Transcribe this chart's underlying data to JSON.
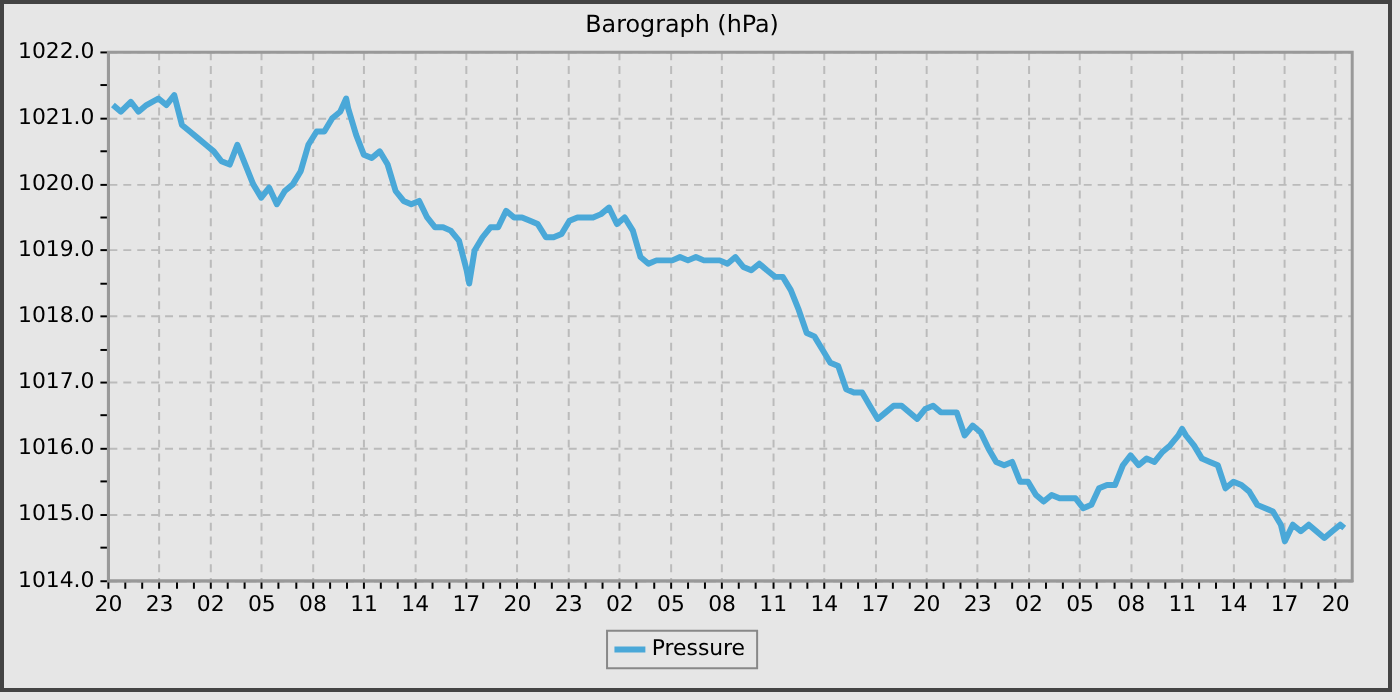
{
  "chart_data": {
    "type": "line",
    "title": "Barograph (hPa)",
    "grid": true,
    "legend": "bottom",
    "marker": "none",
    "line_style": "solid",
    "xlim": [
      "--01-01T20:00",
      "--01-04T20:58"
    ],
    "ylim": [
      1014,
      1022
    ],
    "xticks": [
      {
        "value": "--01-01T20:00",
        "label": "20"
      },
      {
        "value": "--01-01T21:00",
        "label": null
      },
      {
        "value": "--01-01T22:00",
        "label": null
      },
      {
        "value": "--01-01T23:00",
        "label": "23"
      },
      {
        "value": "--01-02T00:00",
        "label": null
      },
      {
        "value": "--01-02T01:00",
        "label": null
      },
      {
        "value": "--01-02T02:00",
        "label": "02"
      },
      {
        "value": "--01-02T03:00",
        "label": null
      },
      {
        "value": "--01-02T04:00",
        "label": null
      },
      {
        "value": "--01-02T05:00",
        "label": "05"
      },
      {
        "value": "--01-02T06:00",
        "label": null
      },
      {
        "value": "--01-02T07:00",
        "label": null
      },
      {
        "value": "--01-02T08:00",
        "label": "08"
      },
      {
        "value": "--01-02T09:00",
        "label": null
      },
      {
        "value": "--01-02T10:00",
        "label": null
      },
      {
        "value": "--01-02T11:00",
        "label": "11"
      },
      {
        "value": "--01-02T12:00",
        "label": null
      },
      {
        "value": "--01-02T13:00",
        "label": null
      },
      {
        "value": "--01-02T14:00",
        "label": "14"
      },
      {
        "value": "--01-02T15:00",
        "label": null
      },
      {
        "value": "--01-02T16:00",
        "label": null
      },
      {
        "value": "--01-02T17:00",
        "label": "17"
      },
      {
        "value": "--01-02T18:00",
        "label": null
      },
      {
        "value": "--01-02T19:00",
        "label": null
      },
      {
        "value": "--01-02T20:00",
        "label": "20"
      },
      {
        "value": "--01-02T21:00",
        "label": null
      },
      {
        "value": "--01-02T22:00",
        "label": null
      },
      {
        "value": "--01-02T23:00",
        "label": "23"
      },
      {
        "value": "--01-03T00:00",
        "label": null
      },
      {
        "value": "--01-03T01:00",
        "label": null
      },
      {
        "value": "--01-03T02:00",
        "label": "02"
      },
      {
        "value": "--01-03T03:00",
        "label": null
      },
      {
        "value": "--01-03T04:00",
        "label": null
      },
      {
        "value": "--01-03T05:00",
        "label": "05"
      },
      {
        "value": "--01-03T06:00",
        "label": null
      },
      {
        "value": "--01-03T07:00",
        "label": null
      },
      {
        "value": "--01-03T08:00",
        "label": "08"
      },
      {
        "value": "--01-03T09:00",
        "label": null
      },
      {
        "value": "--01-03T10:00",
        "label": null
      },
      {
        "value": "--01-03T11:00",
        "label": "11"
      },
      {
        "value": "--01-03T12:00",
        "label": null
      },
      {
        "value": "--01-03T13:00",
        "label": null
      },
      {
        "value": "--01-03T14:00",
        "label": "14"
      },
      {
        "value": "--01-03T15:00",
        "label": null
      },
      {
        "value": "--01-03T16:00",
        "label": null
      },
      {
        "value": "--01-03T17:00",
        "label": "17"
      },
      {
        "value": "--01-03T18:00",
        "label": null
      },
      {
        "value": "--01-03T19:00",
        "label": null
      },
      {
        "value": "--01-03T20:00",
        "label": "20"
      },
      {
        "value": "--01-03T21:00",
        "label": null
      },
      {
        "value": "--01-03T22:00",
        "label": null
      },
      {
        "value": "--01-03T23:00",
        "label": "23"
      },
      {
        "value": "--01-04T00:00",
        "label": null
      },
      {
        "value": "--01-04T01:00",
        "label": null
      },
      {
        "value": "--01-04T02:00",
        "label": "02"
      },
      {
        "value": "--01-04T03:00",
        "label": null
      },
      {
        "value": "--01-04T04:00",
        "label": null
      },
      {
        "value": "--01-04T05:00",
        "label": "05"
      },
      {
        "value": "--01-04T06:00",
        "label": null
      },
      {
        "value": "--01-04T07:00",
        "label": null
      },
      {
        "value": "--01-04T08:00",
        "label": "08"
      },
      {
        "value": "--01-04T09:00",
        "label": null
      },
      {
        "value": "--01-04T10:00",
        "label": null
      },
      {
        "value": "--01-04T11:00",
        "label": "11"
      },
      {
        "value": "--01-04T12:00",
        "label": null
      },
      {
        "value": "--01-04T13:00",
        "label": null
      },
      {
        "value": "--01-04T14:00",
        "label": "14"
      },
      {
        "value": "--01-04T15:00",
        "label": null
      },
      {
        "value": "--01-04T16:00",
        "label": null
      },
      {
        "value": "--01-04T17:00",
        "label": "17"
      },
      {
        "value": "--01-04T18:00",
        "label": null
      },
      {
        "value": "--01-04T19:00",
        "label": null
      },
      {
        "value": "--01-04T20:00",
        "label": "20"
      }
    ],
    "yticks": [
      {
        "value": 1014,
        "label": "1014.0"
      },
      {
        "value": 1014.5,
        "label": null
      },
      {
        "value": 1015,
        "label": "1015.0"
      },
      {
        "value": 1015.5,
        "label": null
      },
      {
        "value": 1016,
        "label": "1016.0"
      },
      {
        "value": 1016.5,
        "label": null
      },
      {
        "value": 1017,
        "label": "1017.0"
      },
      {
        "value": 1017.5,
        "label": null
      },
      {
        "value": 1018,
        "label": "1018.0"
      },
      {
        "value": 1018.5,
        "label": null
      },
      {
        "value": 1019,
        "label": "1019.0"
      },
      {
        "value": 1019.5,
        "label": null
      },
      {
        "value": 1020,
        "label": "1020.0"
      },
      {
        "value": 1020.5,
        "label": null
      },
      {
        "value": 1021,
        "label": "1021.0"
      },
      {
        "value": 1021.5,
        "label": null
      },
      {
        "value": 1022,
        "label": "1022.0"
      }
    ],
    "series": [
      {
        "name": "Pressure",
        "color": "#4aa8d8",
        "x": [
          "--01-01T20:16",
          "--01-01T20:44",
          "--01-01T21:19",
          "--01-01T21:46",
          "--01-01T22:14",
          "--01-01T22:56",
          "--01-01T23:24",
          "--01-01T23:52",
          "--01-02T00:19",
          "--01-02T00:47",
          "--01-02T01:15",
          "--01-02T01:43",
          "--01-02T02:11",
          "--01-02T02:38",
          "--01-02T03:07",
          "--01-02T03:34",
          "--01-02T04:02",
          "--01-02T04:30",
          "--01-02T04:58",
          "--01-02T05:26",
          "--01-02T05:53",
          "--01-02T06:21",
          "--01-02T06:49",
          "--01-02T07:17",
          "--01-02T07:44",
          "--01-02T08:13",
          "--01-02T08:40",
          "--01-02T09:08",
          "--01-02T09:36",
          "--01-02T09:57",
          "--01-02T10:04",
          "--01-02T10:32",
          "--01-02T10:59",
          "--01-02T11:27",
          "--01-02T11:55",
          "--01-02T12:23",
          "--01-02T12:51",
          "--01-02T13:19",
          "--01-02T13:46",
          "--01-02T14:14",
          "--01-02T14:42",
          "--01-02T15:10",
          "--01-02T15:38",
          "--01-02T16:05",
          "--01-02T16:34",
          "--01-02T17:01",
          "--01-02T17:10",
          "--01-02T17:29",
          "--01-02T17:57",
          "--01-02T18:25",
          "--01-02T18:52",
          "--01-02T19:20",
          "--01-02T19:48",
          "--01-02T20:16",
          "--01-02T20:44",
          "--01-02T21:11",
          "--01-02T21:40",
          "--01-02T22:07",
          "--01-02T22:35",
          "--01-02T23:03",
          "--01-02T23:31",
          "--01-02T23:59",
          "--01-03T00:26",
          "--01-03T00:54",
          "--01-03T01:22",
          "--01-03T01:50",
          "--01-03T02:17",
          "--01-03T02:46",
          "--01-03T03:13",
          "--01-03T03:41",
          "--01-03T04:09",
          "--01-03T04:37",
          "--01-03T05:05",
          "--01-03T05:32",
          "--01-03T06:00",
          "--01-03T06:28",
          "--01-03T06:56",
          "--01-03T07:24",
          "--01-03T07:52",
          "--01-03T08:19",
          "--01-03T08:47",
          "--01-03T09:15",
          "--01-03T09:43",
          "--01-03T10:11",
          "--01-03T10:38",
          "--01-03T11:07",
          "--01-03T11:34",
          "--01-03T12:02",
          "--01-03T12:30",
          "--01-03T12:58",
          "--01-03T13:25",
          "--01-03T13:53",
          "--01-03T14:21",
          "--01-03T14:49",
          "--01-03T15:17",
          "--01-03T15:44",
          "--01-03T16:13",
          "--01-03T16:40",
          "--01-03T17:08",
          "--01-03T17:36",
          "--01-03T18:04",
          "--01-03T18:32",
          "--01-03T18:59",
          "--01-03T19:27",
          "--01-03T19:55",
          "--01-03T20:23",
          "--01-03T20:50",
          "--01-03T21:19",
          "--01-03T21:46",
          "--01-03T22:14",
          "--01-03T22:42",
          "--01-03T23:10",
          "--01-03T23:38",
          "--01-04T00:05",
          "--01-04T00:33",
          "--01-04T01:01",
          "--01-04T01:29",
          "--01-04T01:57",
          "--01-04T02:25",
          "--01-04T02:52",
          "--01-04T03:20",
          "--01-04T03:48",
          "--01-04T04:16",
          "--01-04T04:44",
          "--01-04T05:11",
          "--01-04T05:40",
          "--01-04T06:07",
          "--01-04T06:35",
          "--01-04T07:03",
          "--01-04T07:31",
          "--01-04T07:58",
          "--01-04T08:26",
          "--01-04T08:54",
          "--01-04T09:22",
          "--01-04T09:50",
          "--01-04T10:17",
          "--01-04T10:46",
          "--01-04T10:59",
          "--01-04T11:13",
          "--01-04T11:41",
          "--01-04T12:09",
          "--01-04T12:37",
          "--01-04T13:05",
          "--01-04T13:32",
          "--01-04T14:00",
          "--01-04T14:28",
          "--01-04T14:56",
          "--01-04T15:24",
          "--01-04T15:52",
          "--01-04T16:19",
          "--01-04T16:47",
          "--01-04T17:01",
          "--01-04T17:29",
          "--01-04T17:57",
          "--01-04T18:25",
          "--01-04T18:52",
          "--01-04T19:20",
          "--01-04T19:48",
          "--01-04T20:16",
          "--01-04T20:30"
        ],
        "values": [
          1021.2,
          1021.1,
          1021.25,
          1021.1,
          1021.2,
          1021.3,
          1021.2,
          1021.35,
          1020.9,
          1020.8,
          1020.7,
          1020.6,
          1020.5,
          1020.35,
          1020.3,
          1020.6,
          1020.3,
          1020.0,
          1019.8,
          1019.95,
          1019.7,
          1019.9,
          1020.0,
          1020.2,
          1020.6,
          1020.8,
          1020.8,
          1021.0,
          1021.1,
          1021.3,
          1021.15,
          1020.75,
          1020.45,
          1020.4,
          1020.5,
          1020.3,
          1019.9,
          1019.75,
          1019.7,
          1019.75,
          1019.5,
          1019.35,
          1019.35,
          1019.3,
          1019.15,
          1018.7,
          1018.5,
          1019.0,
          1019.2,
          1019.35,
          1019.35,
          1019.6,
          1019.5,
          1019.5,
          1019.45,
          1019.4,
          1019.2,
          1019.2,
          1019.25,
          1019.45,
          1019.5,
          1019.5,
          1019.5,
          1019.55,
          1019.65,
          1019.4,
          1019.5,
          1019.3,
          1018.9,
          1018.8,
          1018.85,
          1018.85,
          1018.85,
          1018.9,
          1018.85,
          1018.9,
          1018.85,
          1018.85,
          1018.85,
          1018.8,
          1018.9,
          1018.75,
          1018.7,
          1018.8,
          1018.7,
          1018.6,
          1018.6,
          1018.4,
          1018.1,
          1017.75,
          1017.7,
          1017.5,
          1017.3,
          1017.25,
          1016.9,
          1016.85,
          1016.85,
          1016.65,
          1016.45,
          1016.55,
          1016.65,
          1016.65,
          1016.55,
          1016.45,
          1016.6,
          1016.65,
          1016.55,
          1016.55,
          1016.55,
          1016.2,
          1016.35,
          1016.25,
          1016.0,
          1015.8,
          1015.75,
          1015.8,
          1015.5,
          1015.5,
          1015.3,
          1015.2,
          1015.3,
          1015.25,
          1015.25,
          1015.25,
          1015.1,
          1015.15,
          1015.4,
          1015.45,
          1015.45,
          1015.75,
          1015.9,
          1015.75,
          1015.85,
          1015.8,
          1015.95,
          1016.05,
          1016.2,
          1016.3,
          1016.2,
          1016.05,
          1015.85,
          1015.8,
          1015.75,
          1015.4,
          1015.5,
          1015.45,
          1015.35,
          1015.15,
          1015.1,
          1015.05,
          1014.85,
          1014.6,
          1014.85,
          1014.75,
          1014.85,
          1014.75,
          1014.65,
          1014.75,
          1014.85,
          1014.8
        ]
      }
    ]
  }
}
